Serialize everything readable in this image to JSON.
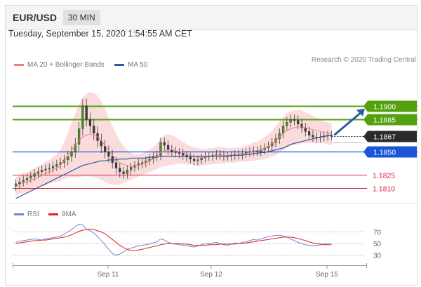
{
  "header": {
    "pair": "EUR/USD",
    "timeframe": "30 MIN"
  },
  "datetime": "Tuesday, September 15, 2020 1:54:55 AM CET",
  "legend": {
    "ma20_label": "MA 20 + Bollinger Bands",
    "ma20_color": "#f08080",
    "ma50_label": "MA 50",
    "ma50_color": "#2f5aa0"
  },
  "credit": "Research © 2020 Trading Central",
  "rsi_legend": {
    "rsi_label": "RSI",
    "rsi_color": "#6f86d6",
    "ma_label": "9MA",
    "ma_color": "#e02020"
  },
  "colors": {
    "green": "#53a10e",
    "blue": "#1a56d6",
    "red": "#d7263d",
    "dark": "#2b2b2b",
    "arrow": "#2c5aa0",
    "band": "#f9d6d6"
  },
  "chart_data": [
    {
      "type": "candlestick",
      "ylim": [
        1.1795,
        1.1935
      ],
      "current_price": 1.1867,
      "levels": [
        {
          "value": 1.19,
          "label": "1.1900",
          "kind": "resistance-target"
        },
        {
          "value": 1.1885,
          "label": "1.1885",
          "kind": "resistance"
        },
        {
          "value": 1.185,
          "label": "1.1850",
          "kind": "pivot"
        },
        {
          "value": 1.1825,
          "label": "1.1825",
          "kind": "support"
        },
        {
          "value": 1.181,
          "label": "1.1810",
          "kind": "support"
        }
      ],
      "xtick_labels": [
        "Sep 11",
        "Sep 12",
        "Sep 15"
      ],
      "series": [
        {
          "name": "MA 20 + Bollinger Bands"
        },
        {
          "name": "MA 50"
        }
      ],
      "close": [
        1.1815,
        1.1817,
        1.1819,
        1.1821,
        1.1823,
        1.1826,
        1.1828,
        1.183,
        1.1831,
        1.1832,
        1.1834,
        1.1836,
        1.1838,
        1.1841,
        1.1845,
        1.185,
        1.1858,
        1.1875,
        1.19,
        1.1885,
        1.1878,
        1.187,
        1.1862,
        1.1856,
        1.185,
        1.1845,
        1.1838,
        1.1832,
        1.1828,
        1.1826,
        1.183,
        1.1833,
        1.1835,
        1.1837,
        1.1838,
        1.184,
        1.1842,
        1.1845,
        1.1846,
        1.186,
        1.1857,
        1.1852,
        1.185,
        1.1849,
        1.1848,
        1.1846,
        1.1844,
        1.1842,
        1.184,
        1.1841,
        1.1843,
        1.1845,
        1.1845,
        1.1846,
        1.1847,
        1.1846,
        1.1845,
        1.1845,
        1.1846,
        1.1847,
        1.1846,
        1.1848,
        1.1849,
        1.185,
        1.1851,
        1.185,
        1.1852,
        1.1854,
        1.1856,
        1.186,
        1.1864,
        1.187,
        1.1878,
        1.1882,
        1.1885,
        1.1884,
        1.188,
        1.1876,
        1.1872,
        1.1868,
        1.1866,
        1.1865,
        1.1866,
        1.1867,
        1.1868,
        1.1867
      ],
      "ma20": [
        1.1812,
        1.1814,
        1.1816,
        1.1817,
        1.1819,
        1.182,
        1.1822,
        1.1824,
        1.1826,
        1.1828,
        1.183,
        1.1832,
        1.1835,
        1.184,
        1.1846,
        1.1852,
        1.1857,
        1.1862,
        1.1866,
        1.1868,
        1.1869,
        1.1868,
        1.1866,
        1.1862,
        1.1857,
        1.1851,
        1.1846,
        1.1842,
        1.1838,
        1.1836,
        1.1835,
        1.1834,
        1.1834,
        1.1835,
        1.1836,
        1.1838,
        1.184,
        1.1842,
        1.1845,
        1.1849,
        1.1851,
        1.1852,
        1.1852,
        1.1851,
        1.185,
        1.1849,
        1.1847,
        1.1846,
        1.1845,
        1.1844,
        1.1844,
        1.1844,
        1.1845,
        1.1845,
        1.1846,
        1.1846,
        1.1846,
        1.1846,
        1.1846,
        1.1846,
        1.1847,
        1.1847,
        1.1848,
        1.1849,
        1.185,
        1.1851,
        1.1852,
        1.1854,
        1.1856,
        1.1859,
        1.1862,
        1.1866,
        1.187,
        1.1873,
        1.1875,
        1.1876,
        1.1877,
        1.1877,
        1.1876,
        1.1875,
        1.1874,
        1.1873,
        1.1872,
        1.1871,
        1.187,
        1.1869
      ],
      "ma50": [
        1.1799,
        1.1801,
        1.1803,
        1.1805,
        1.1807,
        1.1809,
        1.1811,
        1.1813,
        1.1815,
        1.1817,
        1.1819,
        1.1821,
        1.1823,
        1.1825,
        1.1827,
        1.1829,
        1.1831,
        1.1833,
        1.1835,
        1.1836,
        1.1837,
        1.1838,
        1.1839,
        1.184,
        1.184,
        1.1841,
        1.1841,
        1.1841,
        1.1842,
        1.1842,
        1.1842,
        1.1843,
        1.1843,
        1.1843,
        1.1843,
        1.1843,
        1.1844,
        1.1844,
        1.1844,
        1.1845,
        1.1845,
        1.1845,
        1.1845,
        1.1845,
        1.1845,
        1.1845,
        1.1845,
        1.1845,
        1.1845,
        1.1845,
        1.1845,
        1.1845,
        1.1845,
        1.1845,
        1.1845,
        1.1845,
        1.1845,
        1.1845,
        1.1846,
        1.1846,
        1.1846,
        1.1846,
        1.1847,
        1.1847,
        1.1848,
        1.1848,
        1.1849,
        1.1849,
        1.185,
        1.1851,
        1.1852,
        1.1853,
        1.1854,
        1.1856,
        1.1858,
        1.1859,
        1.186,
        1.1861,
        1.1862,
        1.1863,
        1.1864,
        1.1865,
        1.1866,
        1.1867,
        1.1867,
        1.1868
      ],
      "bb_width": [
        0.001,
        0.001,
        0.0011,
        0.0011,
        0.0011,
        0.0012,
        0.0012,
        0.0012,
        0.0013,
        0.0013,
        0.0014,
        0.0015,
        0.0017,
        0.002,
        0.0024,
        0.003,
        0.0035,
        0.004,
        0.0043,
        0.0045,
        0.0046,
        0.0046,
        0.0045,
        0.0043,
        0.004,
        0.0036,
        0.0032,
        0.0028,
        0.0024,
        0.002,
        0.0017,
        0.0015,
        0.0013,
        0.0012,
        0.0012,
        0.0012,
        0.0012,
        0.0013,
        0.0014,
        0.0016,
        0.0017,
        0.0017,
        0.0016,
        0.0015,
        0.0013,
        0.0012,
        0.0011,
        0.001,
        0.001,
        0.001,
        0.0009,
        0.0009,
        0.0009,
        0.0009,
        0.0009,
        0.0009,
        0.0009,
        0.0008,
        0.0008,
        0.0008,
        0.0008,
        0.0008,
        0.0009,
        0.0009,
        0.001,
        0.001,
        0.0011,
        0.0012,
        0.0013,
        0.0014,
        0.0016,
        0.0017,
        0.0018,
        0.0019,
        0.0019,
        0.0019,
        0.0019,
        0.0018,
        0.0017,
        0.0016,
        0.0015,
        0.0014,
        0.0013,
        0.0012,
        0.0012,
        0.0012
      ]
    },
    {
      "type": "line",
      "ylim": [
        20,
        85
      ],
      "yticks": [
        70,
        50,
        30
      ],
      "series": [
        {
          "name": "RSI",
          "values": [
            52,
            54,
            55,
            56,
            57,
            58,
            57,
            56,
            58,
            59,
            60,
            61,
            63,
            66,
            70,
            74,
            79,
            83,
            82,
            75,
            72,
            68,
            62,
            55,
            48,
            40,
            33,
            30,
            32,
            36,
            40,
            42,
            44,
            46,
            47,
            48,
            49,
            51,
            53,
            58,
            56,
            52,
            50,
            49,
            48,
            47,
            46,
            45,
            44,
            46,
            48,
            50,
            49,
            51,
            52,
            50,
            48,
            47,
            49,
            51,
            50,
            52,
            53,
            55,
            57,
            56,
            58,
            60,
            62,
            63,
            64,
            64,
            63,
            61,
            58,
            55,
            52,
            50,
            48,
            47,
            46,
            47,
            48,
            49,
            50,
            50
          ]
        },
        {
          "name": "9MA",
          "values": [
            50,
            51,
            52,
            53,
            54,
            55,
            55,
            56,
            56,
            57,
            58,
            59,
            60,
            61,
            63,
            65,
            68,
            71,
            73,
            74,
            75,
            74,
            72,
            70,
            67,
            62,
            57,
            52,
            47,
            43,
            40,
            38,
            38,
            39,
            40,
            42,
            43,
            45,
            46,
            48,
            49,
            50,
            50,
            50,
            50,
            49,
            49,
            48,
            47,
            47,
            47,
            47,
            48,
            48,
            48,
            49,
            49,
            49,
            49,
            49,
            50,
            50,
            51,
            52,
            53,
            54,
            55,
            56,
            57,
            58,
            59,
            60,
            61,
            61,
            61,
            60,
            59,
            57,
            55,
            53,
            51,
            50,
            49,
            48,
            48,
            48
          ]
        }
      ]
    }
  ]
}
